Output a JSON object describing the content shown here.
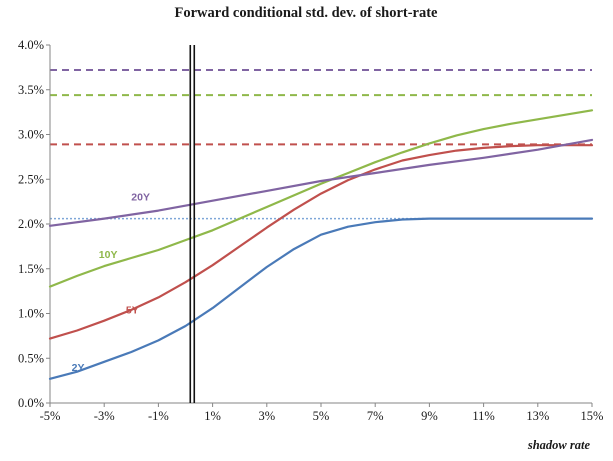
{
  "chart_data": {
    "type": "line",
    "title": "Forward conditional std. dev. of short-rate",
    "xlabel": "shadow rate",
    "ylabel": "",
    "xlim": [
      -5,
      15
    ],
    "ylim": [
      0,
      4
    ],
    "xticks": [
      "-5%",
      "-3%",
      "-1%",
      "1%",
      "3%",
      "5%",
      "7%",
      "9%",
      "11%",
      "13%",
      "15%"
    ],
    "yticks": [
      "0.0%",
      "0.5%",
      "1.0%",
      "1.5%",
      "2.0%",
      "2.5%",
      "3.0%",
      "3.5%",
      "4.0%"
    ],
    "vertical_marker_x": 0.25,
    "series": [
      {
        "name": "2Y",
        "color": "#4a7ab8",
        "x": [
          -5,
          -4,
          -3,
          -2,
          -1,
          0,
          1,
          2,
          3,
          4,
          5,
          6,
          7,
          8,
          9,
          10,
          11,
          12,
          13,
          14,
          15
        ],
        "values": [
          0.27,
          0.35,
          0.46,
          0.57,
          0.7,
          0.86,
          1.06,
          1.29,
          1.52,
          1.72,
          1.88,
          1.97,
          2.02,
          2.05,
          2.06,
          2.06,
          2.06,
          2.06,
          2.06,
          2.06,
          2.06
        ]
      },
      {
        "name": "5Y",
        "color": "#c0504d",
        "x": [
          -5,
          -4,
          -3,
          -2,
          -1,
          0,
          1,
          2,
          3,
          4,
          5,
          6,
          7,
          8,
          9,
          10,
          11,
          12,
          13,
          14,
          15
        ],
        "values": [
          0.72,
          0.81,
          0.92,
          1.04,
          1.18,
          1.35,
          1.54,
          1.75,
          1.96,
          2.16,
          2.34,
          2.49,
          2.61,
          2.71,
          2.77,
          2.82,
          2.85,
          2.87,
          2.88,
          2.88,
          2.88
        ]
      },
      {
        "name": "10Y",
        "color": "#8fb84a",
        "x": [
          -5,
          -4,
          -3,
          -2,
          -1,
          0,
          1,
          2,
          3,
          4,
          5,
          6,
          7,
          8,
          9,
          10,
          11,
          12,
          13,
          14,
          15
        ],
        "values": [
          1.3,
          1.42,
          1.53,
          1.62,
          1.71,
          1.82,
          1.93,
          2.06,
          2.19,
          2.32,
          2.45,
          2.57,
          2.69,
          2.8,
          2.9,
          2.99,
          3.06,
          3.12,
          3.17,
          3.22,
          3.27
        ]
      },
      {
        "name": "20Y",
        "color": "#8064a2",
        "x": [
          -5,
          -3,
          -1,
          1,
          3,
          5,
          7,
          9,
          11,
          13,
          15
        ],
        "values": [
          1.98,
          2.06,
          2.15,
          2.26,
          2.37,
          2.48,
          2.57,
          2.66,
          2.74,
          2.83,
          2.94
        ]
      }
    ],
    "reference_lines": [
      {
        "y": 3.72,
        "color": "#8064a2",
        "style": "dashed"
      },
      {
        "y": 3.44,
        "color": "#8fb84a",
        "style": "dashed"
      },
      {
        "y": 2.89,
        "color": "#c0504d",
        "style": "dashed"
      },
      {
        "y": 2.06,
        "color": "#7ea6d8",
        "style": "dotted"
      }
    ],
    "grid": false,
    "legend": "inline labels on series"
  }
}
